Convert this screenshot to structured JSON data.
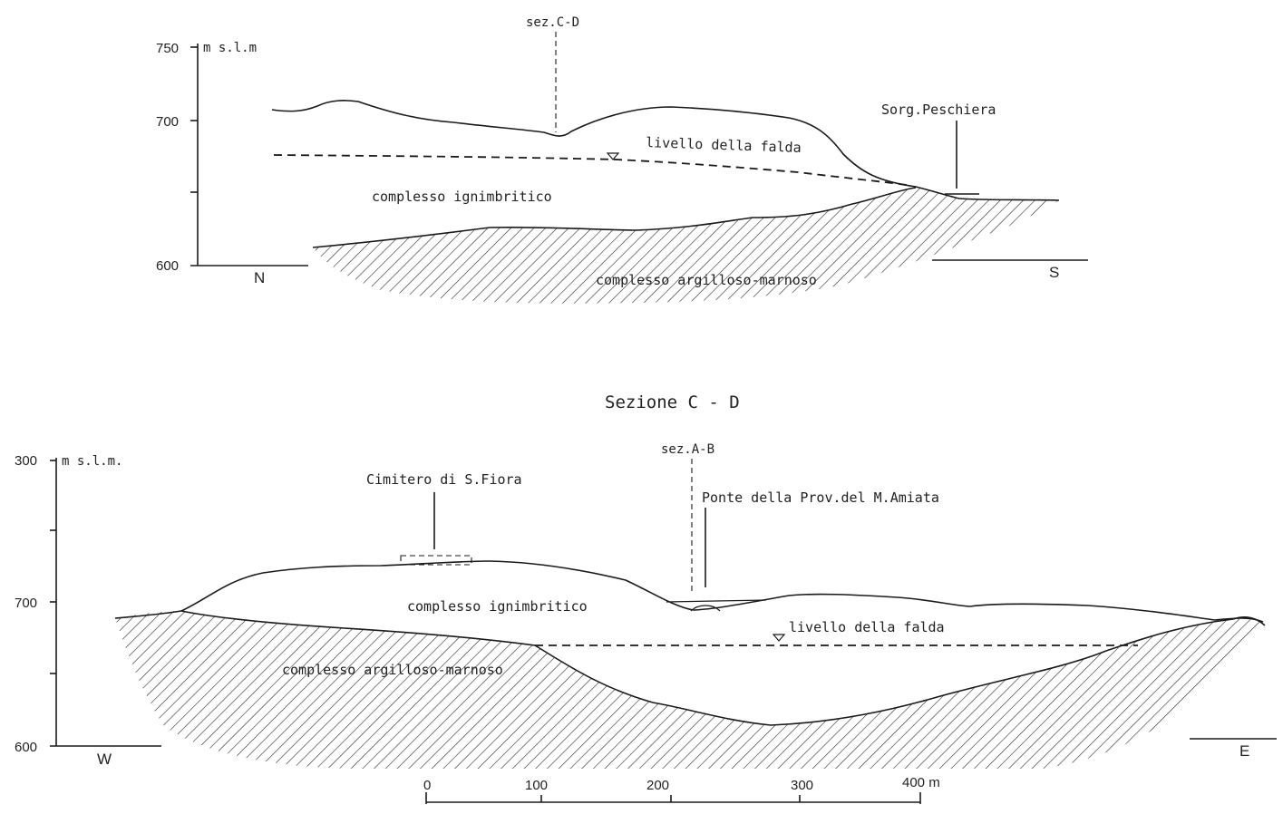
{
  "section_ab": {
    "elevation_unit": "m s.l.m",
    "elevation_ticks": [
      "750",
      "700",
      "600"
    ],
    "direction_left": "N",
    "direction_right": "S",
    "cross_section_marker": "sez.C-D",
    "spring_label": "Sorg.Peschiera",
    "water_table_label": "livello della falda",
    "upper_unit_label": "complesso ignimbritico",
    "lower_unit_label": "complesso argilloso-marnoso"
  },
  "section_cd": {
    "title": "Sezione C - D",
    "elevation_unit": "m s.l.m.",
    "elevation_ticks": [
      "300",
      "700",
      "600"
    ],
    "direction_left": "W",
    "direction_right": "E",
    "cross_section_marker": "sez.A-B",
    "cemetery_label": "Cimitero di S.Fiora",
    "bridge_label": "Ponte della Prov.del M.Amiata",
    "water_table_label": "livello della falda",
    "upper_unit_label": "complesso ignimbritico",
    "lower_unit_label": "complesso argilloso-marnoso"
  },
  "scale_bar": {
    "ticks": [
      "0",
      "100",
      "200",
      "300",
      "400 m"
    ]
  }
}
